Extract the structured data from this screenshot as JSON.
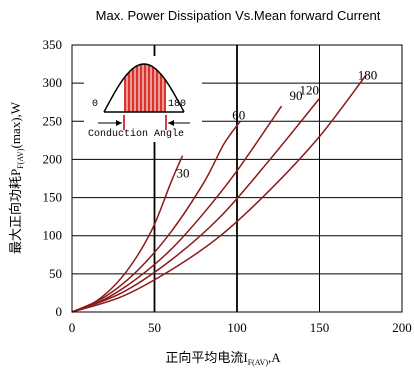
{
  "chart_data": {
    "type": "line",
    "title": "Max. Power Dissipation Vs.Mean forward Current",
    "ylabel_main": "最大正向功耗P",
    "ylabel_sub": "F(AV)",
    "ylabel_tail": "(max),W",
    "xlabel_main": "正向平均电流I",
    "xlabel_sub": "F(AV)",
    "xlabel_tail": ",A",
    "xlim": [
      0,
      200
    ],
    "ylim": [
      0,
      350
    ],
    "x_ticks": [
      "0",
      "50",
      "100",
      "150",
      "200"
    ],
    "y_ticks": [
      "0",
      "50",
      "100",
      "150",
      "200",
      "250",
      "300",
      "350"
    ],
    "grid": true,
    "line_color": "#8b1a1a",
    "series": [
      {
        "name": "30",
        "x": [
          0,
          10,
          20,
          30,
          40,
          50,
          60,
          67
        ],
        "y": [
          0,
          8,
          23,
          45,
          75,
          115,
          170,
          205
        ]
      },
      {
        "name": "60",
        "x": [
          0,
          20,
          40,
          60,
          80,
          92,
          102
        ],
        "y": [
          0,
          20,
          55,
          105,
          170,
          220,
          250
        ]
      },
      {
        "name": "90",
        "x": [
          0,
          20,
          40,
          60,
          80,
          100,
          127
        ],
        "y": [
          0,
          17,
          45,
          82,
          130,
          185,
          270
        ]
      },
      {
        "name": "120",
        "x": [
          0,
          30,
          60,
          90,
          120,
          150
        ],
        "y": [
          0,
          25,
          68,
          125,
          200,
          280
        ]
      },
      {
        "name": "180",
        "x": [
          0,
          30,
          60,
          90,
          120,
          150,
          178
        ],
        "y": [
          0,
          20,
          55,
          100,
          160,
          230,
          310
        ]
      }
    ],
    "inset": {
      "left_angle": "0",
      "right_angle": "180",
      "caption": "Conduction Angle"
    }
  }
}
